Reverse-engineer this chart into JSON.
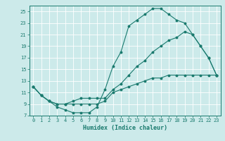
{
  "title": "",
  "xlabel": "Humidex (Indice chaleur)",
  "ylabel": "",
  "bg_color": "#cceaea",
  "line_color": "#1a7a6e",
  "grid_color": "#ffffff",
  "xlim": [
    -0.5,
    23.5
  ],
  "ylim": [
    7,
    26
  ],
  "xticks": [
    0,
    1,
    2,
    3,
    4,
    5,
    6,
    7,
    8,
    9,
    10,
    11,
    12,
    13,
    14,
    15,
    16,
    17,
    18,
    19,
    20,
    21,
    22,
    23
  ],
  "yticks": [
    7,
    9,
    11,
    13,
    15,
    17,
    19,
    21,
    23,
    25
  ],
  "line1_x": [
    0,
    1,
    2,
    3,
    4,
    5,
    6,
    7,
    8,
    9,
    10,
    11,
    12,
    13,
    14,
    15,
    16,
    17,
    18,
    19,
    20,
    21,
    22,
    23
  ],
  "line1_y": [
    12,
    10.5,
    9.5,
    8.5,
    8,
    7.5,
    7.5,
    7.5,
    8.5,
    11.5,
    15.5,
    18,
    22.5,
    23.5,
    24.5,
    25.5,
    25.5,
    24.5,
    23.5,
    23,
    21,
    19,
    17,
    14
  ],
  "line2_x": [
    0,
    1,
    2,
    3,
    4,
    5,
    6,
    7,
    8,
    9,
    10,
    11,
    12,
    13,
    14,
    15,
    16,
    17,
    18,
    19,
    20,
    21,
    22,
    23
  ],
  "line2_y": [
    12,
    10.5,
    9.5,
    9,
    9,
    9,
    9,
    9,
    9,
    9.5,
    11,
    11.5,
    12,
    12.5,
    13,
    13.5,
    13.5,
    14,
    14,
    14,
    14,
    14,
    14,
    14
  ],
  "line3_x": [
    0,
    1,
    2,
    3,
    4,
    5,
    6,
    7,
    8,
    9,
    10,
    11,
    12,
    13,
    14,
    15,
    16,
    17,
    18,
    19,
    20,
    21,
    22,
    23
  ],
  "line3_y": [
    12,
    10.5,
    9.5,
    9,
    9,
    9.5,
    10,
    10,
    10,
    10,
    11.5,
    12.5,
    14,
    15.5,
    16.5,
    18,
    19,
    20,
    20.5,
    21.5,
    21,
    19,
    17,
    14
  ]
}
